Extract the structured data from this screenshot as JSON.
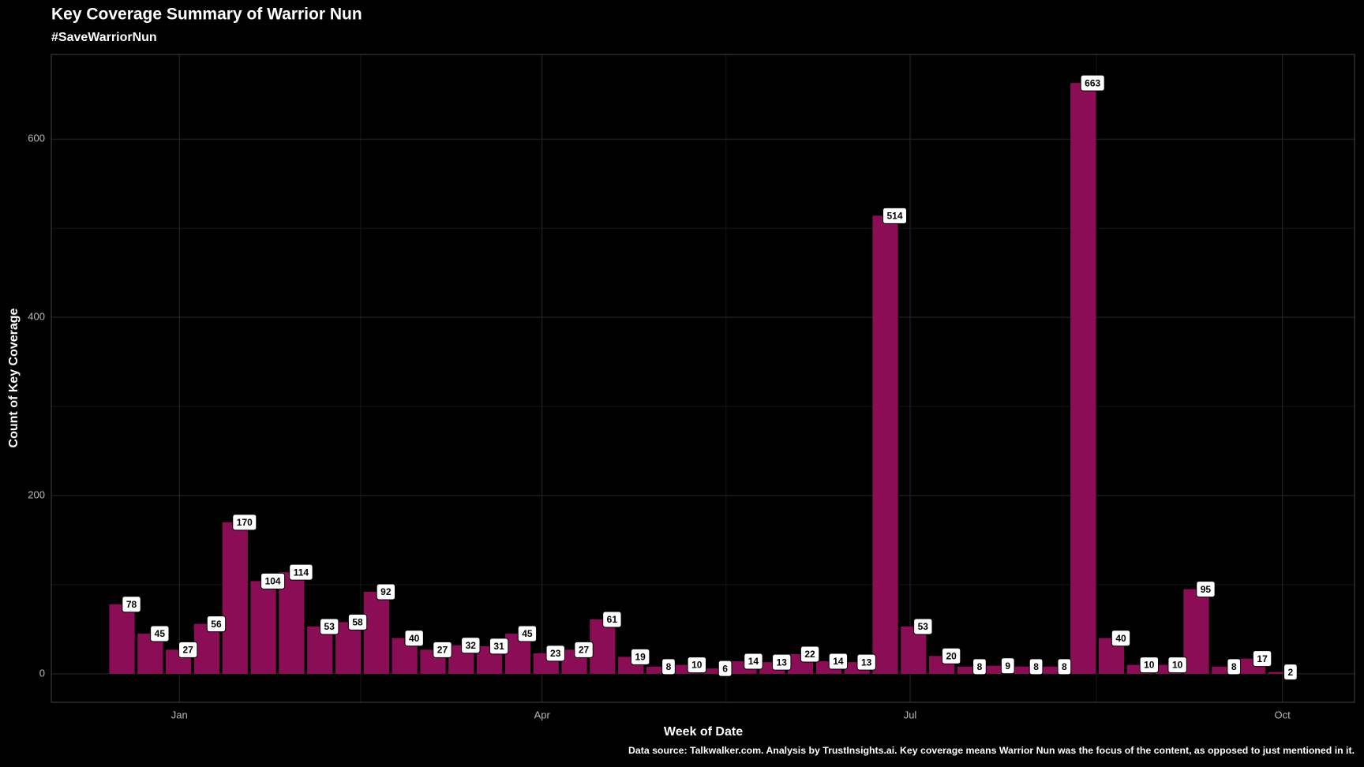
{
  "chart_data": {
    "type": "bar",
    "title": "Key Coverage Summary of Warrior Nun",
    "subtitle": "#SaveWarriorNun",
    "x_label": "Week of Date",
    "y_label": "Count of Key Coverage",
    "caption": "Data source: Talkwalker.com. Analysis by TrustInsights.ai. Key coverage means Warrior Nun was the focus of the content, as opposed to just mentioned in it.",
    "categories": [
      null,
      null,
      null,
      null,
      null,
      null,
      null,
      null,
      null,
      null,
      null,
      null,
      null,
      null,
      null,
      null,
      null,
      null,
      null,
      null,
      null,
      null,
      null,
      null,
      null,
      null,
      null,
      null,
      null,
      null,
      null,
      null,
      null,
      null,
      null,
      null,
      null,
      null,
      null,
      null,
      null,
      null
    ],
    "values": [
      78,
      45,
      27,
      56,
      170,
      104,
      114,
      53,
      58,
      92,
      40,
      27,
      32,
      31,
      45,
      23,
      27,
      61,
      19,
      8,
      10,
      6,
      14,
      13,
      22,
      14,
      13,
      514,
      53,
      20,
      8,
      9,
      8,
      8,
      663,
      40,
      10,
      10,
      95,
      8,
      17,
      2
    ],
    "color": "#8b0d55",
    "xlim": [
      -2.5,
      43.6
    ],
    "xticks": [
      {
        "value": 2.03,
        "label": "Jan"
      },
      {
        "value": 14.86,
        "label": "Apr"
      },
      {
        "value": 27.88,
        "label": "Jul"
      },
      {
        "value": 41.05,
        "label": "Oct"
      }
    ],
    "ylim": [
      -32,
      695
    ],
    "yticks": [
      0,
      200,
      400,
      600
    ],
    "grid": true
  }
}
